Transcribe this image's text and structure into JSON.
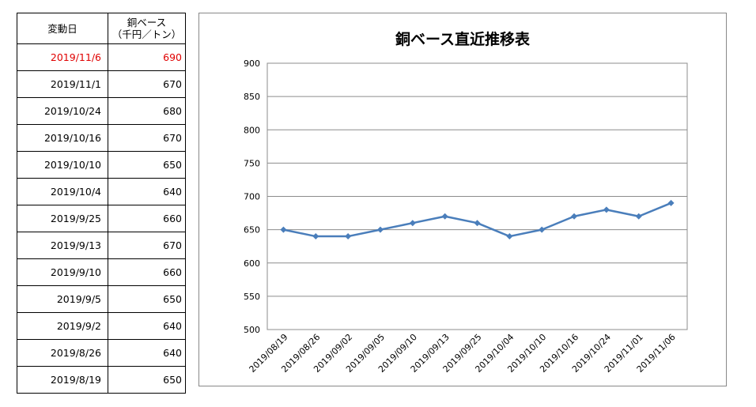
{
  "table": {
    "headers": {
      "date": "変動日",
      "price_line1": "銅ベース",
      "price_line2": "（千円／トン）"
    },
    "rows": [
      {
        "date": "2019/11/6",
        "price": "690",
        "highlight": true
      },
      {
        "date": "2019/11/1",
        "price": "670"
      },
      {
        "date": "2019/10/24",
        "price": "680"
      },
      {
        "date": "2019/10/16",
        "price": "670"
      },
      {
        "date": "2019/10/10",
        "price": "650"
      },
      {
        "date": "2019/10/4",
        "price": "640"
      },
      {
        "date": "2019/9/25",
        "price": "660"
      },
      {
        "date": "2019/9/13",
        "price": "670"
      },
      {
        "date": "2019/9/10",
        "price": "660"
      },
      {
        "date": "2019/9/5",
        "price": "650"
      },
      {
        "date": "2019/9/2",
        "price": "640"
      },
      {
        "date": "2019/8/26",
        "price": "640"
      },
      {
        "date": "2019/8/19",
        "price": "650"
      }
    ],
    "highlight_color": "#e00000"
  },
  "chart_data": {
    "type": "line",
    "title": "銅ベース直近推移表",
    "xlabel": "",
    "ylabel": "",
    "categories": [
      "2019/08/19",
      "2019/08/26",
      "2019/09/02",
      "2019/09/05",
      "2019/09/10",
      "2019/09/13",
      "2019/09/25",
      "2019/10/04",
      "2019/10/10",
      "2019/10/16",
      "2019/10/24",
      "2019/11/01",
      "2019/11/06"
    ],
    "series": [
      {
        "values": [
          650,
          640,
          640,
          650,
          660,
          670,
          660,
          640,
          650,
          670,
          680,
          670,
          690
        ],
        "color": "#4a7ebb",
        "marker": "diamond"
      }
    ],
    "ylim": [
      500,
      900
    ],
    "yticks": [
      500,
      550,
      600,
      650,
      700,
      750,
      800,
      850,
      900
    ],
    "grid": true,
    "legend": "none"
  }
}
